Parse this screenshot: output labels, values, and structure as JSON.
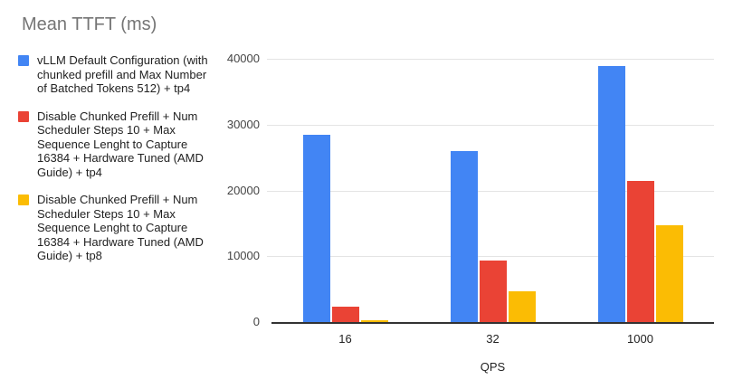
{
  "chart_data": {
    "type": "bar",
    "title": "Mean TTFT (ms)",
    "xlabel": "QPS",
    "ylabel": "",
    "categories": [
      "16",
      "32",
      "1000"
    ],
    "series": [
      {
        "name": "vLLM Default Configuration (with chunked prefill and Max Number of Batched Tokens 512) + tp4",
        "color": "#4285F4",
        "values": [
          28500,
          26000,
          38900
        ]
      },
      {
        "name": "Disable Chunked Prefill + Num Scheduler Steps 10 + Max Sequence Lenght to Capture 16384 + Hardware Tuned (AMD Guide) + tp4",
        "color": "#EA4335",
        "values": [
          2300,
          9400,
          21500
        ]
      },
      {
        "name": "Disable Chunked Prefill + Num Scheduler Steps 10 + Max Sequence Lenght to Capture 16384 + Hardware Tuned (AMD Guide) + tp8",
        "color": "#FBBC04",
        "values": [
          250,
          4700,
          14700
        ]
      }
    ],
    "y_ticks": [
      0,
      10000,
      20000,
      30000,
      40000
    ],
    "ylim": [
      0,
      40000
    ],
    "grid": true,
    "legend_position": "left",
    "title_color": "#757575",
    "axis_color": "#333333",
    "gridline_color": "#e4e4e4",
    "tick_label_color": "#444444",
    "label_color": "#222222"
  },
  "legend": {
    "items": [
      {
        "swatch_color": "#4285F4",
        "lines": [
          "vLLM Default Configuration (with",
          "chunked prefill and Max Number",
          "of Batched Tokens 512) + tp4"
        ]
      },
      {
        "swatch_color": "#EA4335",
        "lines": [
          "Disable Chunked Prefill + Num",
          "Scheduler Steps 10 + Max",
          "Sequence Lenght to Capture",
          "16384 + Hardware Tuned (AMD",
          "Guide) + tp4"
        ]
      },
      {
        "swatch_color": "#FBBC04",
        "lines": [
          "Disable Chunked Prefill + Num",
          "Scheduler Steps 10 + Max",
          "Sequence Lenght to Capture",
          "16384 + Hardware Tuned (AMD",
          "Guide) + tp8"
        ]
      }
    ]
  }
}
